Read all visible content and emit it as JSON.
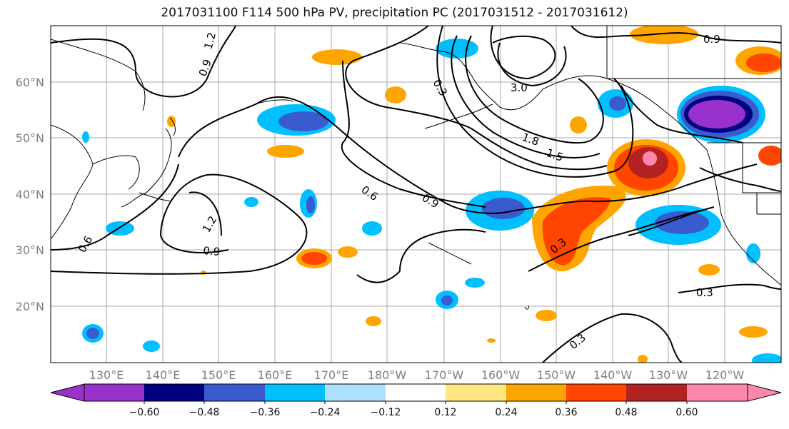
{
  "title": "2017031100 F114 500 hPa PV, precipitation PC (2017031512 - 2017031612)",
  "lat_ticks": [
    "60°N",
    "50°N",
    "40°N",
    "30°N",
    "20°N"
  ],
  "lon_ticks": [
    "130°E",
    "140°E",
    "150°E",
    "160°E",
    "170°E",
    "180°W",
    "170°W",
    "160°W",
    "150°W",
    "140°W",
    "130°W",
    "120°W"
  ],
  "colorbar": {
    "colors": [
      "#9932CC",
      "#000080",
      "#3A5BCD",
      "#00BFFF",
      "#ADDFFF",
      "#FFFFFF",
      "#FFE680",
      "#FFA500",
      "#FF4500",
      "#B22222",
      "#FF88AA"
    ],
    "tick_labels": [
      "−0.60",
      "−0.48",
      "−0.36",
      "−0.24",
      "−0.12",
      "0.12",
      "0.24",
      "0.36",
      "0.48",
      "0.60"
    ]
  },
  "contour_labels": [
    "1.2",
    "0.9",
    "0.3",
    "3.0",
    "1.8",
    "1.5",
    "0.9",
    "0.6",
    "0.9",
    "1.2",
    "0.6",
    "0.9",
    "0.3",
    "0.3",
    "0.3"
  ]
}
